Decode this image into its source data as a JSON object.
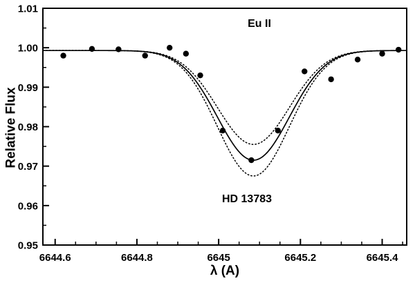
{
  "chart_data": {
    "type": "line",
    "title": "",
    "xlabel": "λ (A)",
    "ylabel": "Relative Flux",
    "xlim": [
      6644.57,
      6645.46
    ],
    "ylim": [
      0.95,
      1.01
    ],
    "x_ticks": [
      6644.6,
      6644.8,
      6645.0,
      6645.2,
      6645.4
    ],
    "x_tick_labels": [
      "6644.6",
      "6644.8",
      "6645",
      "6645.2",
      "6645.4"
    ],
    "y_ticks": [
      0.95,
      0.96,
      0.97,
      0.98,
      0.99,
      1.0,
      1.01
    ],
    "y_tick_labels": [
      "0.95",
      "0.96",
      "0.97",
      "0.98",
      "0.99",
      "1.00",
      "1.01"
    ],
    "x_minor_step": 0.05,
    "y_minor_step": 0.005,
    "grid": false,
    "legend": "none",
    "annotations": [
      {
        "text": "Eu II"
      },
      {
        "text": "HD 13783"
      }
    ],
    "scatter": {
      "name": "observed-spectrum-points",
      "marker": "filled-circle",
      "color": "#000000",
      "points": [
        [
          6644.62,
          0.998
        ],
        [
          6644.69,
          0.9997
        ],
        [
          6644.755,
          0.9996
        ],
        [
          6644.82,
          0.998
        ],
        [
          6644.88,
          1.0
        ],
        [
          6644.92,
          0.9985
        ],
        [
          6644.955,
          0.993
        ],
        [
          6645.01,
          0.979
        ],
        [
          6645.08,
          0.9715
        ],
        [
          6645.145,
          0.979
        ],
        [
          6645.21,
          0.994
        ],
        [
          6645.275,
          0.992
        ],
        [
          6645.34,
          0.997
        ],
        [
          6645.4,
          0.9985
        ],
        [
          6645.44,
          0.9995
        ]
      ]
    },
    "fits": {
      "model": "gaussian-absorption",
      "continuum": 0.9993,
      "center": 6645.085,
      "sigma": 0.088,
      "series": [
        {
          "name": "best-fit",
          "style": "solid",
          "depth": 0.0278,
          "color": "#000000"
        },
        {
          "name": "upper-uncertainty",
          "style": "dotted",
          "depth": 0.0238,
          "color": "#000000"
        },
        {
          "name": "lower-uncertainty",
          "style": "dotted",
          "depth": 0.0318,
          "color": "#000000"
        }
      ]
    },
    "colors": {
      "foreground": "#000000",
      "background": "#ffffff"
    }
  }
}
